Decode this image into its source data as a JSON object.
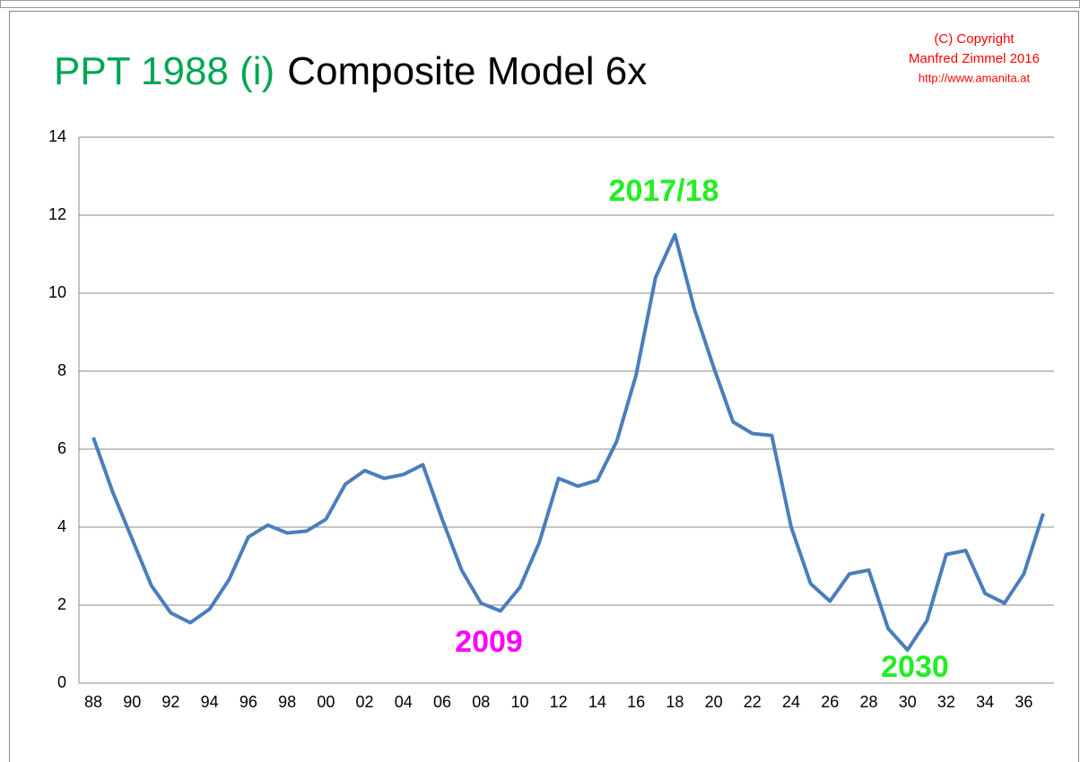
{
  "chart_data": {
    "type": "line",
    "title_parts": [
      {
        "text": "PPT 1988 (i)",
        "color": "#00a651"
      },
      {
        "text": "Composite Model 6x",
        "color": "#000000"
      }
    ],
    "copyright": [
      "(C) Copyright",
      "Manfred Zimmel  2016",
      "http://www.amanita.at"
    ],
    "copyright_color": "#ff0000",
    "categories": [
      "88",
      null,
      "90",
      null,
      "92",
      null,
      "94",
      null,
      "96",
      null,
      "98",
      null,
      "00",
      null,
      "02",
      null,
      "04",
      null,
      "06",
      null,
      "08",
      null,
      "10",
      null,
      "12",
      null,
      "14",
      null,
      "16",
      null,
      "18",
      null,
      "20",
      null,
      "22",
      null,
      "24",
      null,
      "26",
      null,
      "28",
      null,
      "30",
      null,
      "32",
      null,
      "34",
      null,
      "36",
      null
    ],
    "series": [
      {
        "name": "Composite Model 6x",
        "color": "#4a7ebb",
        "values": [
          6.3,
          4.9,
          3.7,
          2.5,
          1.8,
          1.55,
          1.9,
          2.65,
          3.75,
          4.05,
          3.85,
          3.9,
          4.2,
          5.1,
          5.45,
          5.25,
          5.35,
          5.6,
          4.2,
          2.9,
          2.05,
          1.85,
          2.45,
          3.6,
          5.25,
          5.05,
          5.2,
          6.2,
          7.9,
          10.4,
          11.5,
          9.6,
          8.1,
          6.7,
          6.4,
          6.35,
          4.0,
          2.55,
          2.1,
          2.8,
          2.9,
          1.4,
          0.85,
          1.6,
          3.3,
          3.4,
          2.3,
          2.05,
          2.8,
          4.35
        ]
      }
    ],
    "annotations": [
      {
        "text": "2017/18",
        "color": "#22ee22"
      },
      {
        "text": "2009",
        "color": "#ff00ff"
      },
      {
        "text": "2030",
        "color": "#22ee22"
      }
    ],
    "ylim": [
      0,
      14
    ],
    "yticks": [
      0,
      2,
      4,
      6,
      8,
      10,
      12,
      14
    ],
    "grid": true
  }
}
